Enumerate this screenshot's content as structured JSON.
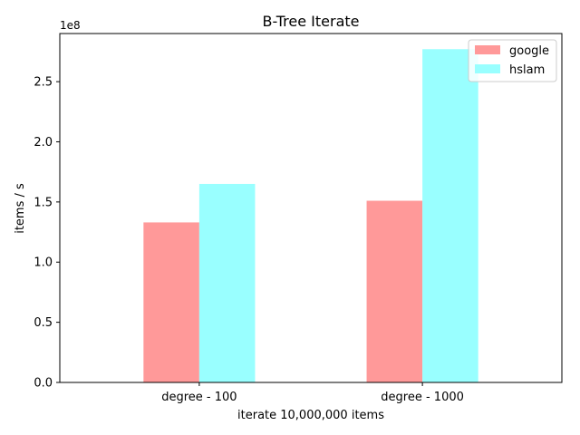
{
  "chart_data": {
    "type": "bar",
    "title": "B-Tree Iterate",
    "xlabel": "iterate 10,000,000 items",
    "ylabel": "items / s",
    "offset_text": "1e8",
    "categories": [
      "degree - 100",
      "degree - 1000"
    ],
    "series": [
      {
        "name": "google",
        "values": [
          1.33,
          1.51
        ],
        "color": "#ff9999"
      },
      {
        "name": "hslam",
        "values": [
          1.65,
          2.77
        ],
        "color": "#99ffff"
      }
    ],
    "ylim": [
      0,
      2.9
    ],
    "yticks": [
      0,
      0.5,
      1.0,
      1.5,
      2.0,
      2.5
    ],
    "ytick_labels": [
      "0.0",
      "0.5",
      "1.0",
      "1.5",
      "2.0",
      "2.5"
    ],
    "grid": false,
    "legend": "top-right"
  }
}
